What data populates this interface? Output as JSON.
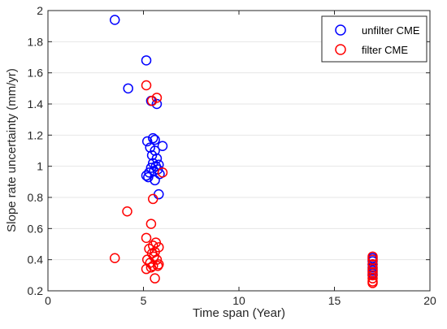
{
  "chart_data": {
    "type": "scatter",
    "xlabel": "Time span (Year)",
    "ylabel": "Slope rate uncertainty (mm/yr)",
    "xlim": [
      0,
      20
    ],
    "ylim": [
      0.2,
      2
    ],
    "xticks": [
      0,
      5,
      10,
      15,
      20
    ],
    "yticks": [
      0.2,
      0.4,
      0.6,
      0.8,
      1,
      1.2,
      1.4,
      1.6,
      1.8,
      2
    ],
    "xtick_labels": [
      "0",
      "5",
      "10",
      "15",
      "20"
    ],
    "ytick_labels": [
      "0.2",
      "0.4",
      "0.6",
      "0.8",
      "1",
      "1.2",
      "1.4",
      "1.6",
      "1.8",
      "2"
    ],
    "grid": "horizontal",
    "legend_position": "top-right",
    "series": [
      {
        "name": "unfilter CME",
        "color": "#0000ff",
        "marker": "open-circle",
        "points": [
          [
            3.5,
            1.94
          ],
          [
            5.15,
            1.68
          ],
          [
            4.2,
            1.5
          ],
          [
            5.4,
            1.42
          ],
          [
            5.7,
            1.4
          ],
          [
            5.5,
            1.18
          ],
          [
            5.6,
            1.17
          ],
          [
            5.2,
            1.16
          ],
          [
            6.0,
            1.13
          ],
          [
            5.35,
            1.12
          ],
          [
            5.6,
            1.1
          ],
          [
            5.45,
            1.07
          ],
          [
            5.7,
            1.05
          ],
          [
            5.5,
            1.02
          ],
          [
            5.8,
            1.01
          ],
          [
            5.65,
            1.0
          ],
          [
            5.4,
            0.99
          ],
          [
            5.75,
            0.98
          ],
          [
            5.55,
            0.97
          ],
          [
            5.3,
            0.96
          ],
          [
            5.85,
            0.95
          ],
          [
            5.15,
            0.94
          ],
          [
            5.25,
            0.93
          ],
          [
            5.6,
            0.91
          ],
          [
            5.8,
            0.82
          ],
          [
            17.0,
            0.41
          ],
          [
            17.0,
            0.39
          ],
          [
            17.0,
            0.37
          ],
          [
            17.0,
            0.35
          ],
          [
            17.0,
            0.33
          ],
          [
            17.0,
            0.31
          ],
          [
            17.0,
            0.3
          ]
        ]
      },
      {
        "name": "filter CME",
        "color": "#ff0000",
        "marker": "open-circle",
        "points": [
          [
            5.15,
            1.52
          ],
          [
            5.7,
            1.44
          ],
          [
            5.45,
            1.42
          ],
          [
            6.0,
            0.96
          ],
          [
            5.5,
            0.79
          ],
          [
            4.15,
            0.71
          ],
          [
            5.4,
            0.63
          ],
          [
            5.15,
            0.54
          ],
          [
            5.65,
            0.51
          ],
          [
            5.5,
            0.49
          ],
          [
            5.8,
            0.48
          ],
          [
            5.3,
            0.47
          ],
          [
            5.6,
            0.45
          ],
          [
            5.45,
            0.44
          ],
          [
            5.55,
            0.42
          ],
          [
            3.5,
            0.41
          ],
          [
            5.7,
            0.4
          ],
          [
            5.2,
            0.4
          ],
          [
            5.35,
            0.38
          ],
          [
            5.8,
            0.37
          ],
          [
            5.5,
            0.36
          ],
          [
            5.75,
            0.36
          ],
          [
            5.15,
            0.34
          ],
          [
            5.4,
            0.35
          ],
          [
            5.6,
            0.28
          ],
          [
            17.0,
            0.42
          ],
          [
            17.0,
            0.4
          ],
          [
            17.0,
            0.37
          ],
          [
            17.0,
            0.34
          ],
          [
            17.0,
            0.32
          ],
          [
            17.0,
            0.3
          ],
          [
            17.0,
            0.28
          ],
          [
            17.0,
            0.26
          ],
          [
            17.0,
            0.25
          ]
        ]
      }
    ]
  }
}
